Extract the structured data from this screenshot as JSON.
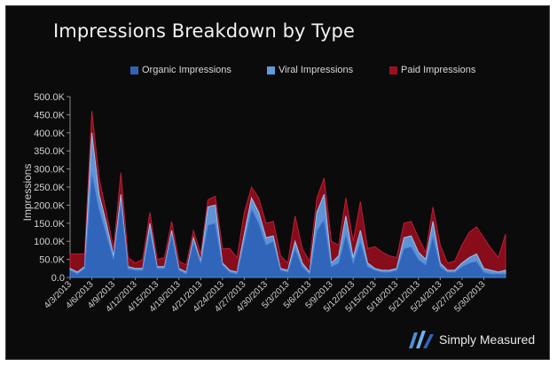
{
  "chart_data": {
    "type": "area",
    "title": "Impressions Breakdown by Type",
    "ylabel": "Impressions",
    "xlabel": "",
    "ylim": [
      0,
      500000
    ],
    "y_ticks": [
      "0.0",
      "50.0K",
      "100.0K",
      "150.0K",
      "200.0K",
      "250.0K",
      "300.0K",
      "350.0K",
      "400.0K",
      "450.0K",
      "500.0K"
    ],
    "x_tick_labels": [
      "4/3/2013",
      "4/6/2013",
      "4/9/2013",
      "4/12/2013",
      "4/15/2013",
      "4/18/2013",
      "4/21/2013",
      "4/24/2013",
      "4/27/2013",
      "4/30/2013",
      "5/3/2013",
      "5/6/2013",
      "5/9/2013",
      "5/12/2013",
      "5/15/2013",
      "5/18/2013",
      "5/21/2013",
      "5/24/2013",
      "5/27/2013",
      "5/30/2013"
    ],
    "legend_position": "top",
    "grid": false,
    "stacked": true,
    "series": [
      {
        "name": "Organic Impressions",
        "color": "#2f63b8",
        "values": [
          20000,
          10000,
          25000,
          290000,
          190000,
          120000,
          50000,
          210000,
          25000,
          20000,
          20000,
          130000,
          25000,
          25000,
          120000,
          20000,
          10000,
          100000,
          40000,
          145000,
          150000,
          35000,
          15000,
          10000,
          100000,
          190000,
          150000,
          90000,
          100000,
          20000,
          15000,
          80000,
          30000,
          10000,
          130000,
          160000,
          30000,
          40000,
          120000,
          40000,
          100000,
          30000,
          20000,
          15000,
          15000,
          20000,
          80000,
          85000,
          50000,
          35000,
          115000,
          30000,
          15000,
          15000,
          30000,
          40000,
          45000,
          15000,
          10000,
          10000,
          10000
        ]
      },
      {
        "name": "Viral Impressions",
        "color": "#5d9be0",
        "values": [
          5000,
          5000,
          5000,
          110000,
          40000,
          30000,
          10000,
          20000,
          5000,
          5000,
          5000,
          20000,
          5000,
          5000,
          10000,
          5000,
          5000,
          10000,
          5000,
          50000,
          50000,
          5000,
          5000,
          5000,
          20000,
          30000,
          30000,
          20000,
          15000,
          5000,
          5000,
          20000,
          10000,
          5000,
          50000,
          70000,
          10000,
          20000,
          50000,
          15000,
          30000,
          10000,
          5000,
          5000,
          5000,
          5000,
          30000,
          30000,
          20000,
          15000,
          40000,
          10000,
          5000,
          5000,
          10000,
          15000,
          20000,
          10000,
          10000,
          5000,
          10000
        ]
      },
      {
        "name": "Paid Impressions",
        "color": "#9b1020",
        "values": [
          40000,
          50000,
          35000,
          60000,
          45000,
          30000,
          20000,
          60000,
          25000,
          15000,
          25000,
          30000,
          20000,
          25000,
          25000,
          20000,
          20000,
          20000,
          20000,
          20000,
          25000,
          40000,
          60000,
          40000,
          60000,
          30000,
          40000,
          40000,
          40000,
          35000,
          20000,
          70000,
          40000,
          30000,
          40000,
          45000,
          60000,
          30000,
          50000,
          45000,
          80000,
          40000,
          60000,
          50000,
          40000,
          30000,
          40000,
          40000,
          40000,
          20000,
          40000,
          50000,
          20000,
          25000,
          50000,
          70000,
          75000,
          85000,
          60000,
          40000,
          100000
        ]
      }
    ]
  }
}
